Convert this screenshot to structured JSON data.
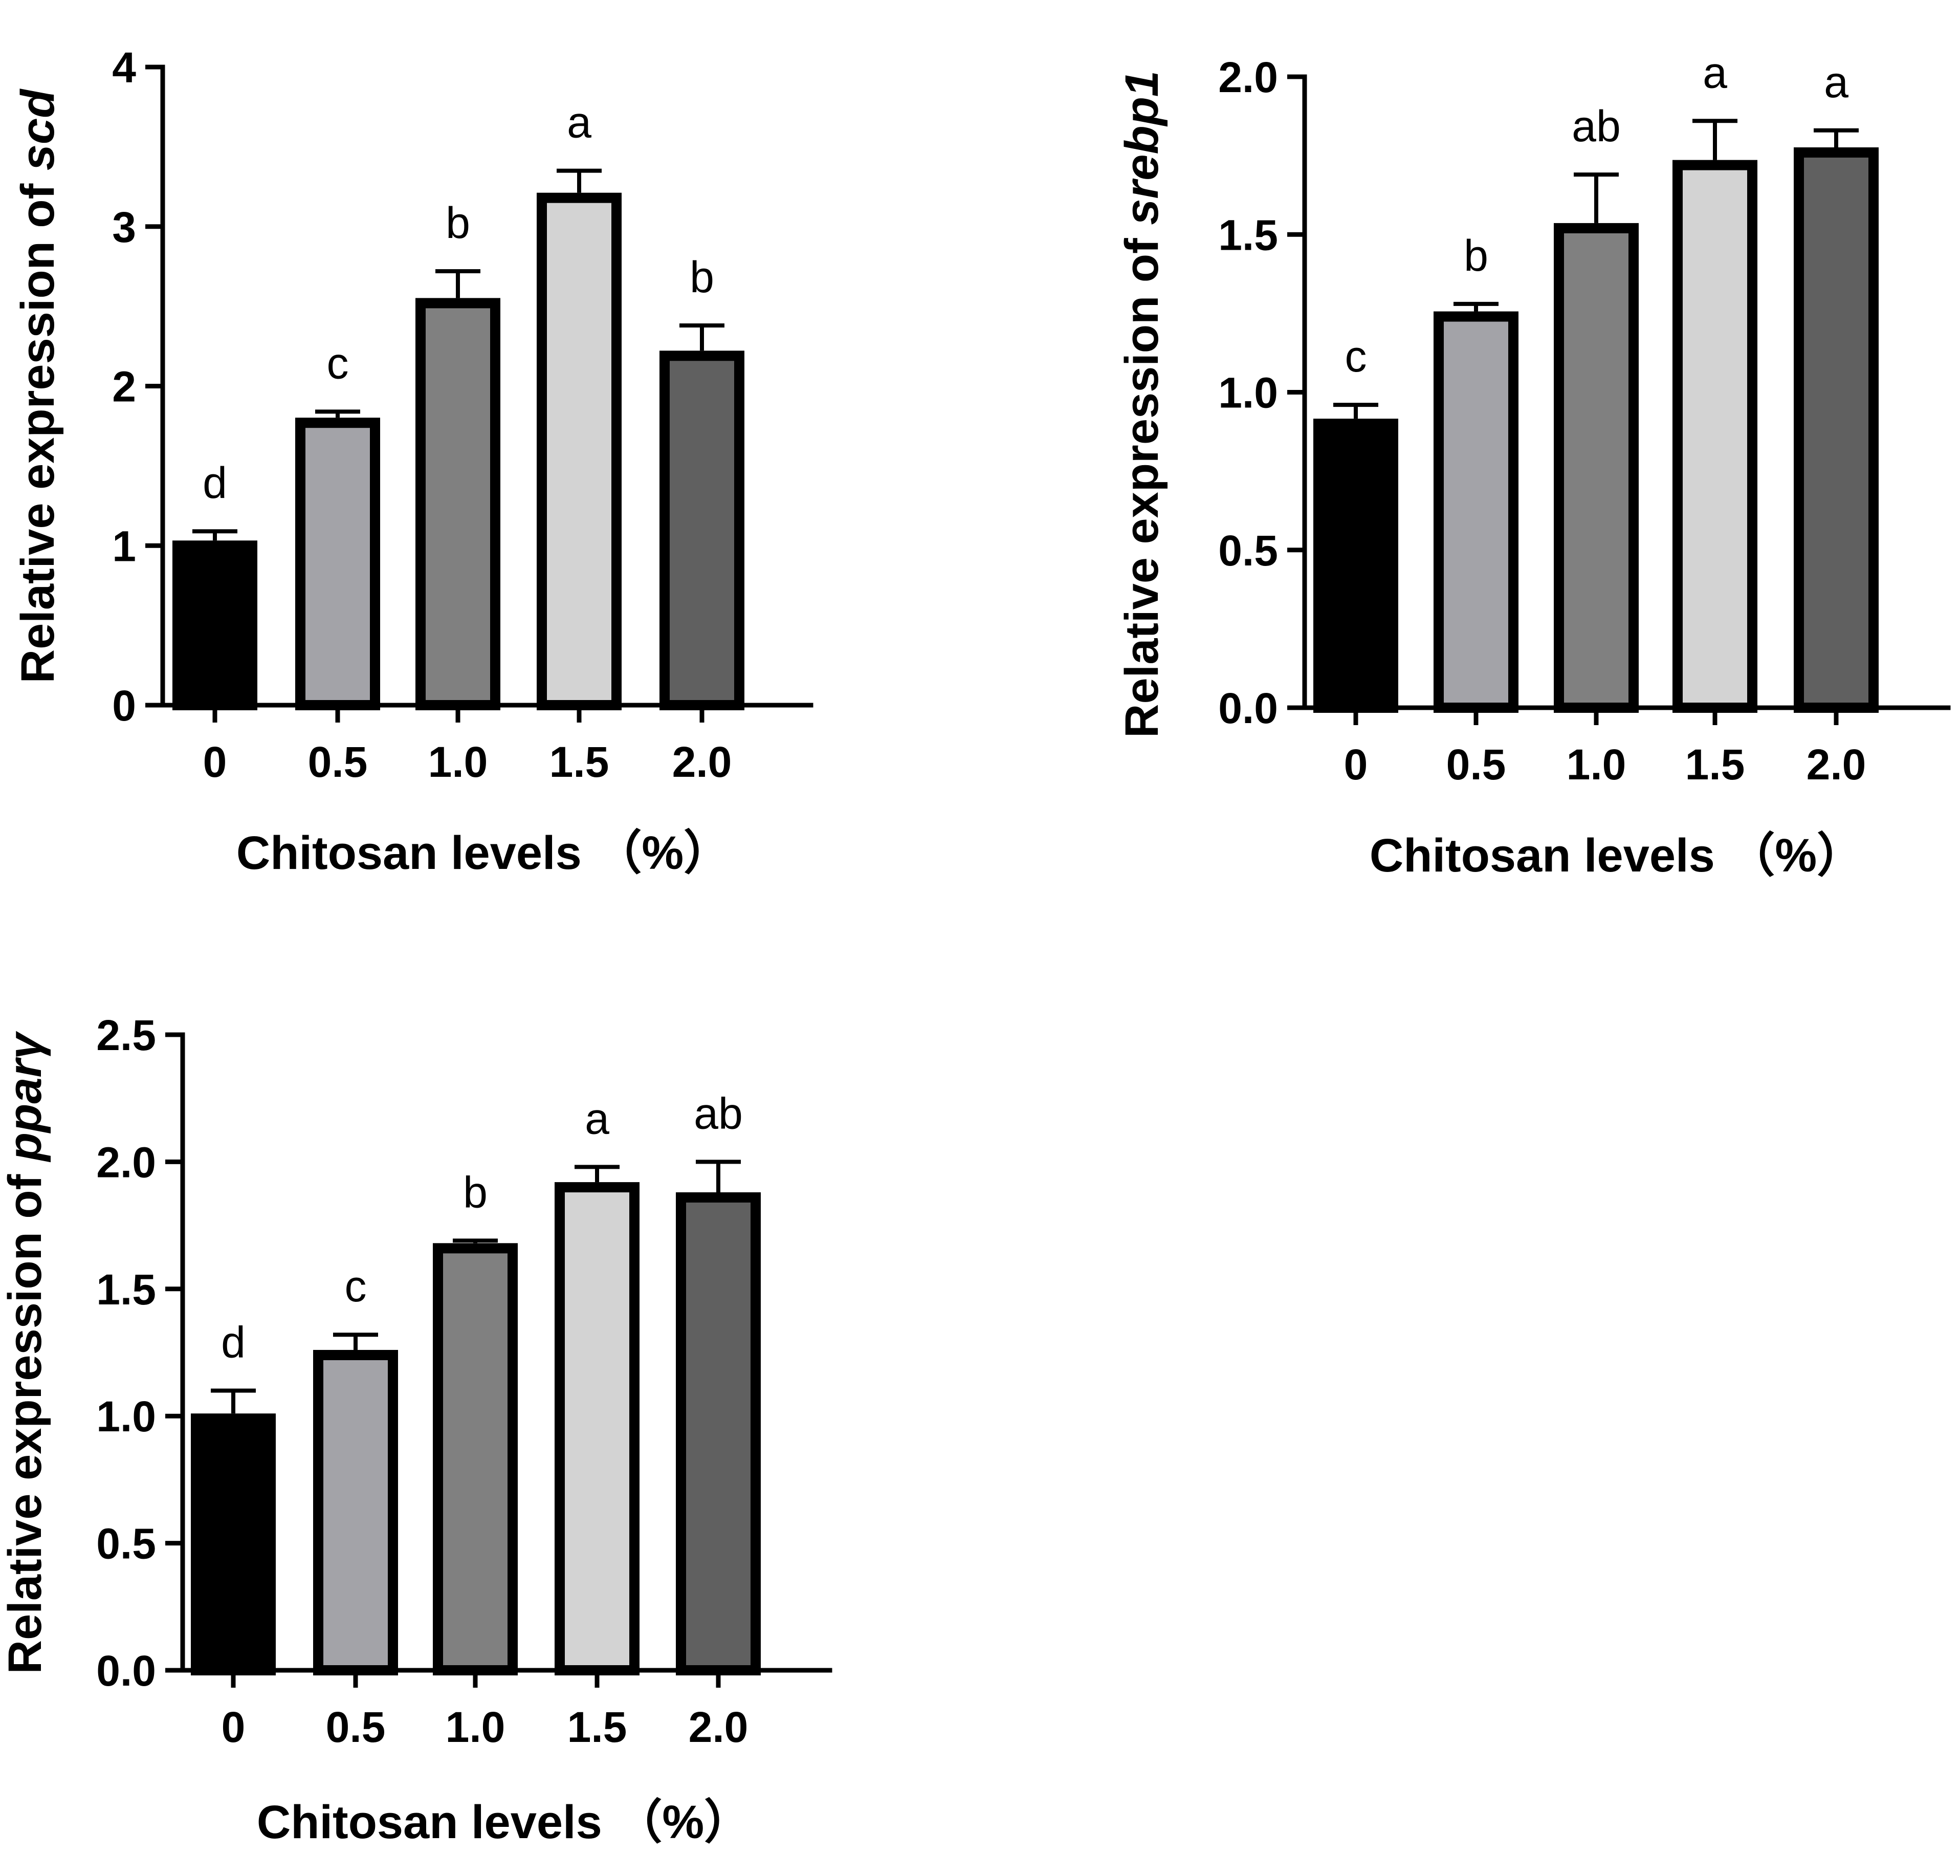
{
  "chart_data": [
    {
      "type": "bar",
      "x_label": "Chitosan levels",
      "x_unit": "（%）",
      "y_label_prefix": "Relative expression of ",
      "gene": "scd",
      "categories": [
        "0",
        "0.5",
        "1.0",
        "1.5",
        "2.0"
      ],
      "values": [
        1.0,
        1.77,
        2.52,
        3.18,
        2.19
      ],
      "errors": [
        0.09,
        0.07,
        0.2,
        0.17,
        0.19
      ],
      "significance": [
        "d",
        "c",
        "b",
        "a",
        "b"
      ],
      "ylim": [
        0,
        4
      ],
      "yticks": [
        "0",
        "1",
        "2",
        "3",
        "4"
      ],
      "bar_colors": [
        "#000000",
        "#a3a3a8",
        "#808080",
        "#d3d3d3",
        "#606060"
      ]
    },
    {
      "type": "bar",
      "x_label": "Chitosan levels",
      "x_unit": "（%）",
      "y_label_prefix": "Relative expression of ",
      "gene": "srebp1",
      "categories": [
        "0",
        "0.5",
        "1.0",
        "1.5",
        "2.0"
      ],
      "values": [
        0.9,
        1.24,
        1.52,
        1.72,
        1.76
      ],
      "errors": [
        0.06,
        0.04,
        0.17,
        0.14,
        0.07
      ],
      "significance": [
        "c",
        "b",
        "ab",
        "a",
        "a"
      ],
      "ylim": [
        0,
        2.0
      ],
      "yticks": [
        "0.0",
        "0.5",
        "1.0",
        "1.5",
        "2.0"
      ],
      "bar_colors": [
        "#000000",
        "#a3a3a8",
        "#808080",
        "#d3d3d3",
        "#606060"
      ]
    },
    {
      "type": "bar",
      "x_label": "Chitosan levels",
      "x_unit": "（%）",
      "y_label_prefix": "Relative expression of ",
      "gene": "pparγ",
      "categories": [
        "0",
        "0.5",
        "1.0",
        "1.5",
        "2.0"
      ],
      "values": [
        0.99,
        1.24,
        1.66,
        1.9,
        1.86
      ],
      "errors": [
        0.11,
        0.08,
        0.03,
        0.08,
        0.14
      ],
      "significance": [
        "d",
        "c",
        "b",
        "a",
        "ab"
      ],
      "ylim": [
        0,
        2.5
      ],
      "yticks": [
        "0.0",
        "0.5",
        "1.0",
        "1.5",
        "2.0",
        "2.5"
      ],
      "bar_colors": [
        "#000000",
        "#a3a3a8",
        "#808080",
        "#d3d3d3",
        "#606060"
      ]
    }
  ]
}
